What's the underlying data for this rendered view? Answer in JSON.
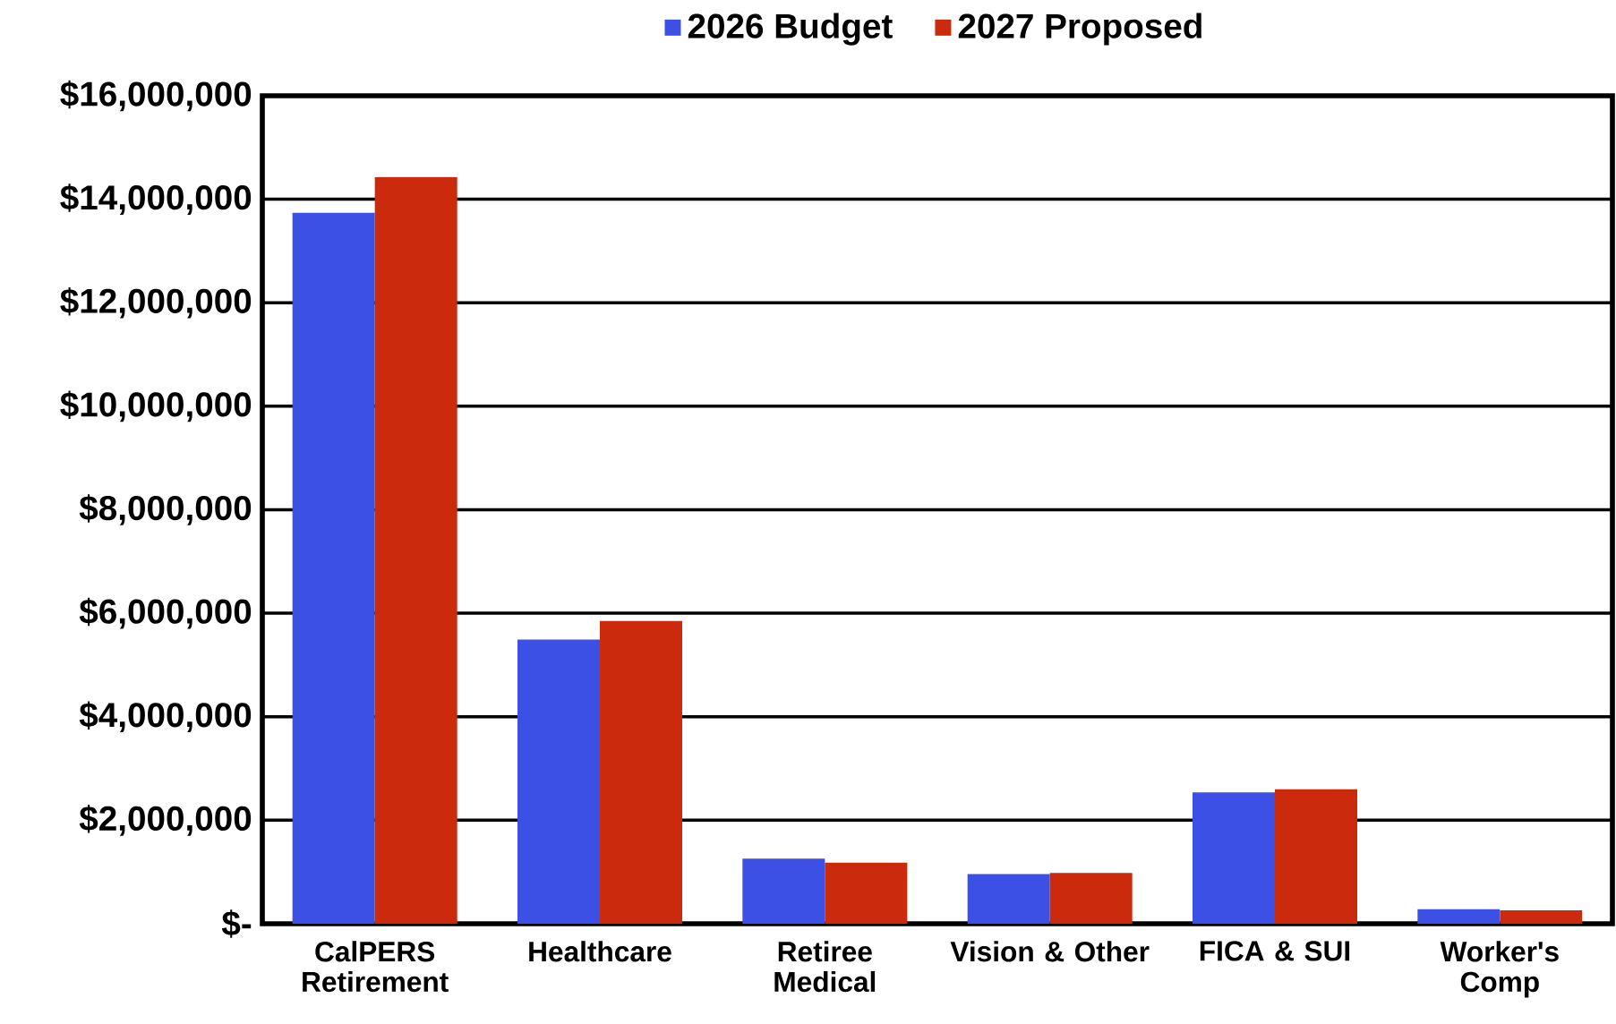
{
  "chart_data": {
    "type": "bar",
    "categories": [
      "CalPERS Retirement",
      "Healthcare",
      "Retiree Medical",
      "Vision & Other",
      "FICA & SUI",
      "Worker's Comp"
    ],
    "series": [
      {
        "name": "2026 Budget",
        "color": "#3d50e6",
        "values": [
          13740000,
          5490000,
          1260000,
          960000,
          2540000,
          280000
        ]
      },
      {
        "name": "2027 Proposed",
        "color": "#cc2a0c",
        "values": [
          14430000,
          5850000,
          1180000,
          980000,
          2600000,
          260000
        ]
      }
    ],
    "ylim": [
      0,
      16000000
    ],
    "yticks": [
      {
        "value": 0,
        "label": "$-"
      },
      {
        "value": 2000000,
        "label": "$2,000,000"
      },
      {
        "value": 4000000,
        "label": "$4,000,000"
      },
      {
        "value": 6000000,
        "label": "$6,000,000"
      },
      {
        "value": 8000000,
        "label": "$8,000,000"
      },
      {
        "value": 10000000,
        "label": "$10,000,000"
      },
      {
        "value": 12000000,
        "label": "$12,000,000"
      },
      {
        "value": 14000000,
        "label": "$14,000,000"
      },
      {
        "value": 16000000,
        "label": "$16,000,000"
      }
    ],
    "grid": "y",
    "legend": "top"
  }
}
